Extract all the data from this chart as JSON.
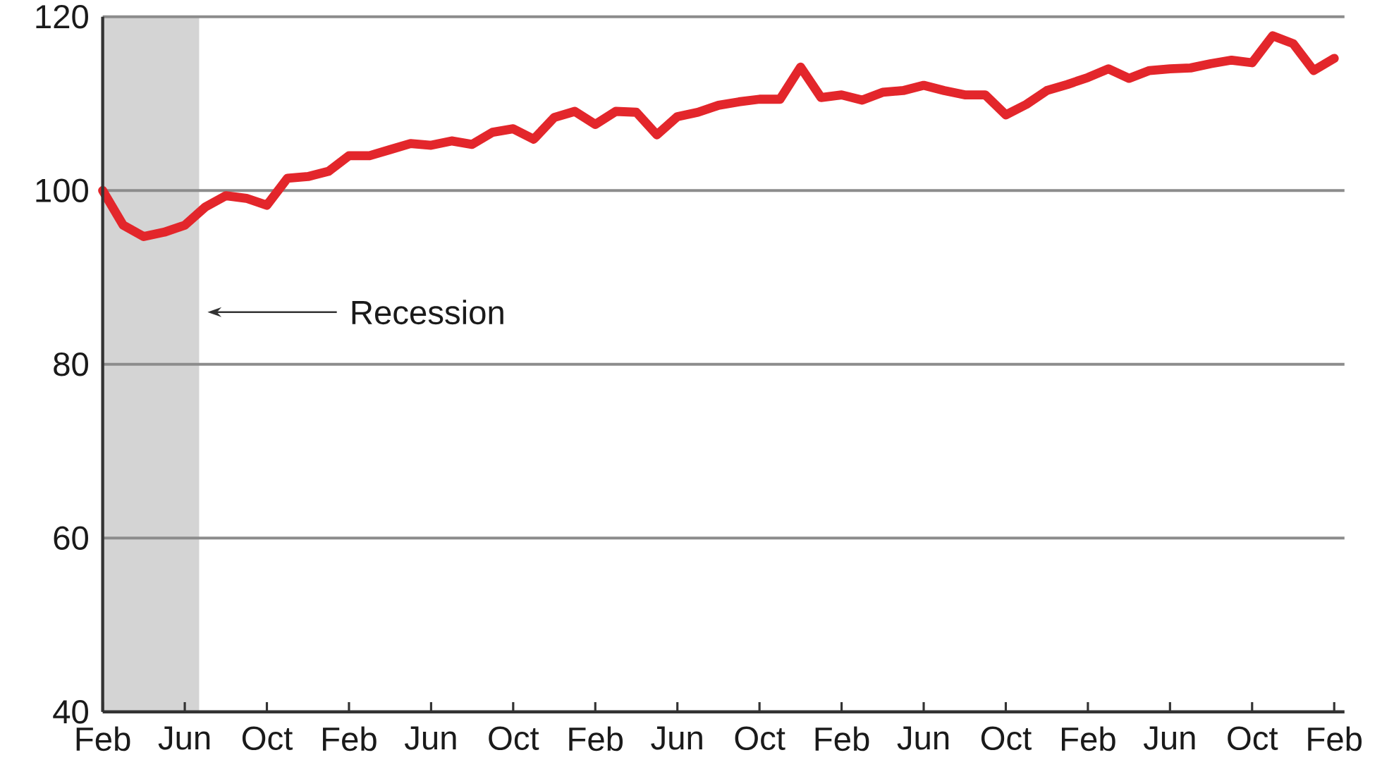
{
  "chart_data": {
    "type": "line",
    "categories": [
      "Feb",
      null,
      null,
      null,
      "Jun",
      null,
      null,
      null,
      "Oct",
      null,
      null,
      null,
      "Feb",
      null,
      null,
      null,
      "Jun",
      null,
      null,
      null,
      "Oct",
      null,
      null,
      null,
      "Feb",
      null,
      null,
      null,
      "Jun",
      null,
      null,
      null,
      "Oct",
      null,
      null,
      null,
      "Feb",
      null,
      null,
      null,
      "Jun",
      null,
      null,
      null,
      "Oct",
      null,
      null,
      null,
      "Feb",
      null,
      null,
      null,
      "Jun",
      null,
      null,
      null,
      "Oct",
      null,
      null,
      null,
      "Feb"
    ],
    "series": [
      {
        "color": "#e3262b",
        "values": [
          100.0,
          96.0,
          94.7,
          95.2,
          96.0,
          98.1,
          99.4,
          99.1,
          98.3,
          101.4,
          101.6,
          102.2,
          104.0,
          104.0,
          104.7,
          105.4,
          105.2,
          105.7,
          105.3,
          106.7,
          107.1,
          105.9,
          108.4,
          109.1,
          107.6,
          109.1,
          109.0,
          106.4,
          108.5,
          109.0,
          109.8,
          110.2,
          110.5,
          110.5,
          114.2,
          110.7,
          111.0,
          110.4,
          111.3,
          111.5,
          112.1,
          111.5,
          111.0,
          111.0,
          108.7,
          109.9,
          111.5,
          112.2,
          113.0,
          114.0,
          112.9,
          113.8,
          114.0,
          114.1,
          114.6,
          115.0,
          114.7,
          117.8,
          116.9,
          113.8,
          115.2
        ]
      }
    ],
    "ylim": [
      40,
      120
    ],
    "yticks": [
      40,
      60,
      80,
      100,
      120
    ],
    "grid": "y",
    "annotations": [
      "Recession"
    ]
  }
}
